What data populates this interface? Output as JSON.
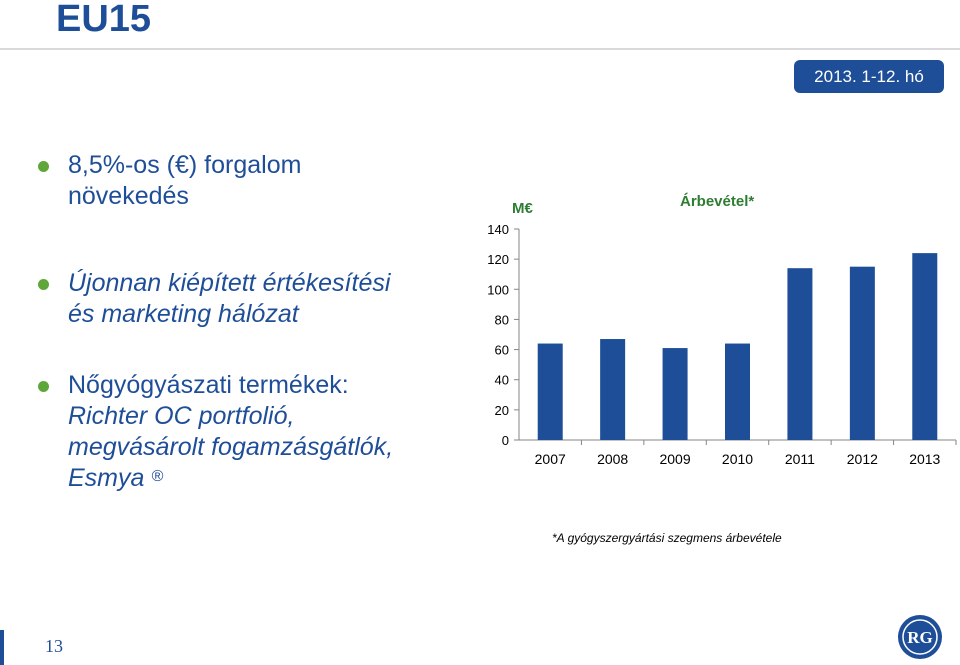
{
  "slide": {
    "title": "EU15",
    "date": "2013. 1-12. hó",
    "page_number": "13",
    "bullets": {
      "b1_line1": "8,5%-os (€) forgalom",
      "b1_line2": "növekedés",
      "b2_line1": "Újonnan kiépített értékesítési",
      "b2_line2": "és marketing hálózat",
      "b3_line1": "Nőgyógyászati termékek:",
      "b3_line2": "Richter OC portfolió,",
      "b3_line3": "megvásárolt fogamzásgátlók,",
      "b3_line4": "Esmya",
      "reg_mark": "®"
    },
    "footnote": "*A gyógyszergyártási szegmens árbevétele",
    "logo_text": "RG",
    "icons": [
      "bullet-dot-icon",
      "rg-logo-icon"
    ]
  },
  "colors": {
    "brand_blue": "#1f4e99",
    "bar_blue": "#1f4e99",
    "bullet_green": "#5fa73a",
    "legend_green": "#2e7d32"
  },
  "chart_data": {
    "type": "bar",
    "unit_label": "M€",
    "legend": "Árbevétel*",
    "categories": [
      "2007",
      "2008",
      "2009",
      "2010",
      "2011",
      "2012",
      "2013"
    ],
    "values": [
      64,
      67,
      61,
      64,
      114,
      115,
      124
    ],
    "yticks": [
      "0",
      "20",
      "40",
      "60",
      "80",
      "100",
      "120",
      "140"
    ],
    "ylim": [
      0,
      140
    ]
  }
}
